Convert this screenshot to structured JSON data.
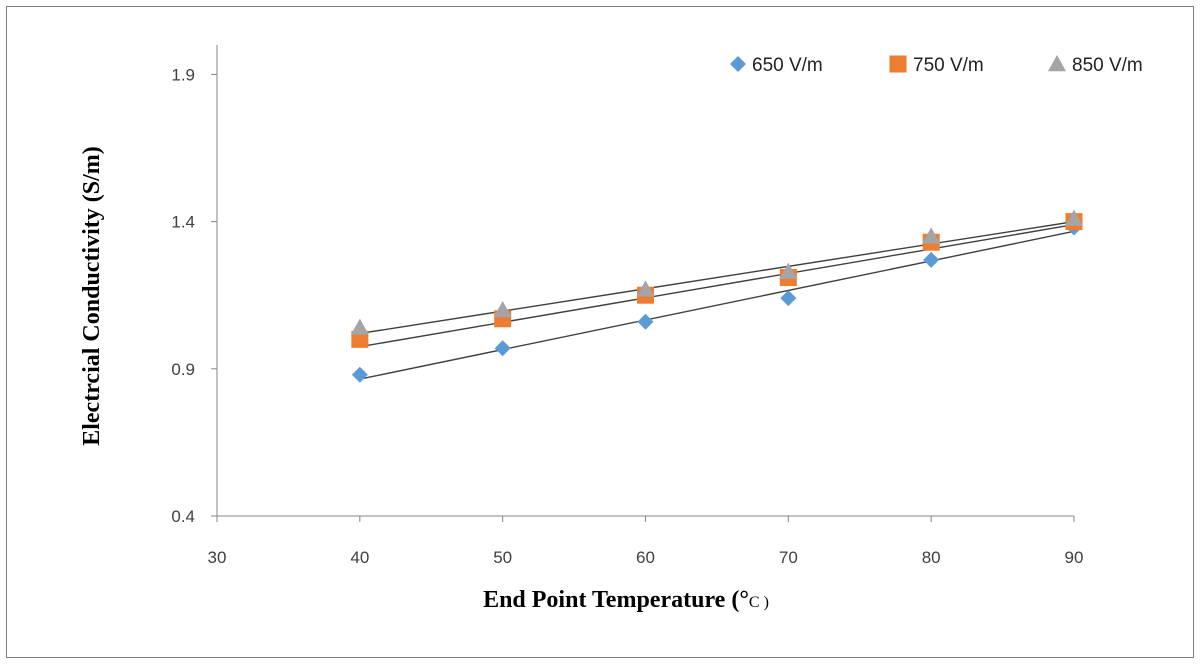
{
  "chart_data": {
    "type": "scatter",
    "xlabel": "End Point Temperature (",
    "xlabel_degree": "°",
    "xlabel_unit": "C )",
    "ylabel": "Electrcial Conductivity (S/m)",
    "xlim": [
      30,
      90
    ],
    "ylim": [
      0.4,
      2.0
    ],
    "x_ticks": [
      "30",
      "40",
      "50",
      "60",
      "70",
      "80",
      "90"
    ],
    "y_ticks": [
      "0.4",
      "0.9",
      "1.4",
      "1.9"
    ],
    "grid": false,
    "legend_position": "top-right",
    "x": [
      40,
      50,
      60,
      70,
      80,
      90
    ],
    "series": [
      {
        "name": "650 V/m",
        "marker": "diamond",
        "color": "#5b9bd5",
        "values": [
          0.88,
          0.97,
          1.06,
          1.14,
          1.27,
          1.38
        ],
        "trendline": {
          "start": 0.865,
          "end": 1.367
        }
      },
      {
        "name": "750 V/m",
        "marker": "square",
        "color": "#ed7d31",
        "values": [
          1.0,
          1.07,
          1.15,
          1.21,
          1.33,
          1.4
        ],
        "trendline": {
          "start": 0.975,
          "end": 1.39
        }
      },
      {
        "name": "850 V/m",
        "marker": "triangle",
        "color": "#a5a5a5",
        "values": [
          1.04,
          1.1,
          1.17,
          1.23,
          1.35,
          1.41
        ],
        "trendline": {
          "start": 1.02,
          "end": 1.4
        }
      }
    ],
    "trendline_color": "#404040"
  }
}
